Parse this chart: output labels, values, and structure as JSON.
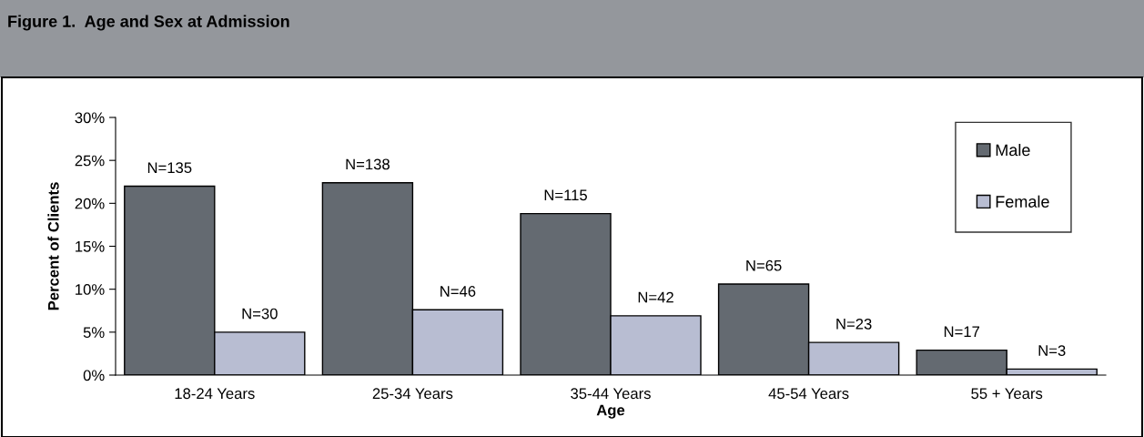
{
  "chart_data": {
    "type": "bar",
    "title": "Figure 1.  Age and Sex at Admission",
    "xlabel": "Age",
    "ylabel": "Percent of Clients",
    "categories": [
      "18-24 Years",
      "25-34 Years",
      "35-44 Years",
      "45-54 Years",
      "55 + Years"
    ],
    "series": [
      {
        "name": "Male",
        "color": "#646a71",
        "values": [
          22.0,
          22.4,
          18.8,
          10.6,
          2.9
        ]
      },
      {
        "name": "Female",
        "color": "#b8bdd2",
        "values": [
          5.0,
          7.6,
          6.9,
          3.8,
          0.7
        ]
      }
    ],
    "annotations": [
      {
        "text": "N=135",
        "x": "18-24 Years",
        "y": 22.0
      },
      {
        "text": "N=30",
        "x": "18-24 Years",
        "y": 5.0
      },
      {
        "text": "N=138",
        "x": "25-34 Years",
        "y": 22.4
      },
      {
        "text": "N=46",
        "x": "25-34 Years",
        "y": 7.6
      },
      {
        "text": "N=115",
        "x": "35-44 Years",
        "y": 18.8
      },
      {
        "text": "N=42",
        "x": "35-44 Years",
        "y": 6.9
      },
      {
        "text": "N=65",
        "x": "45-54 Years",
        "y": 10.6
      },
      {
        "text": "N=23",
        "x": "45-54 Years",
        "y": 3.8
      },
      {
        "text": "N=17",
        "x": "55 + Years",
        "y": 2.9
      },
      {
        "text": "N=3",
        "x": "55 + Years",
        "y": 0.7
      }
    ],
    "ylim": [
      0,
      30
    ],
    "yticks": [
      {
        "value": 0,
        "label": "0%"
      },
      {
        "value": 5,
        "label": "5%"
      },
      {
        "value": 10,
        "label": "10%"
      },
      {
        "value": 15,
        "label": "15%"
      },
      {
        "value": 20,
        "label": "20%"
      },
      {
        "value": 25,
        "label": "25%"
      },
      {
        "value": 30,
        "label": "30%"
      }
    ],
    "grid": false,
    "legend": "top right"
  }
}
